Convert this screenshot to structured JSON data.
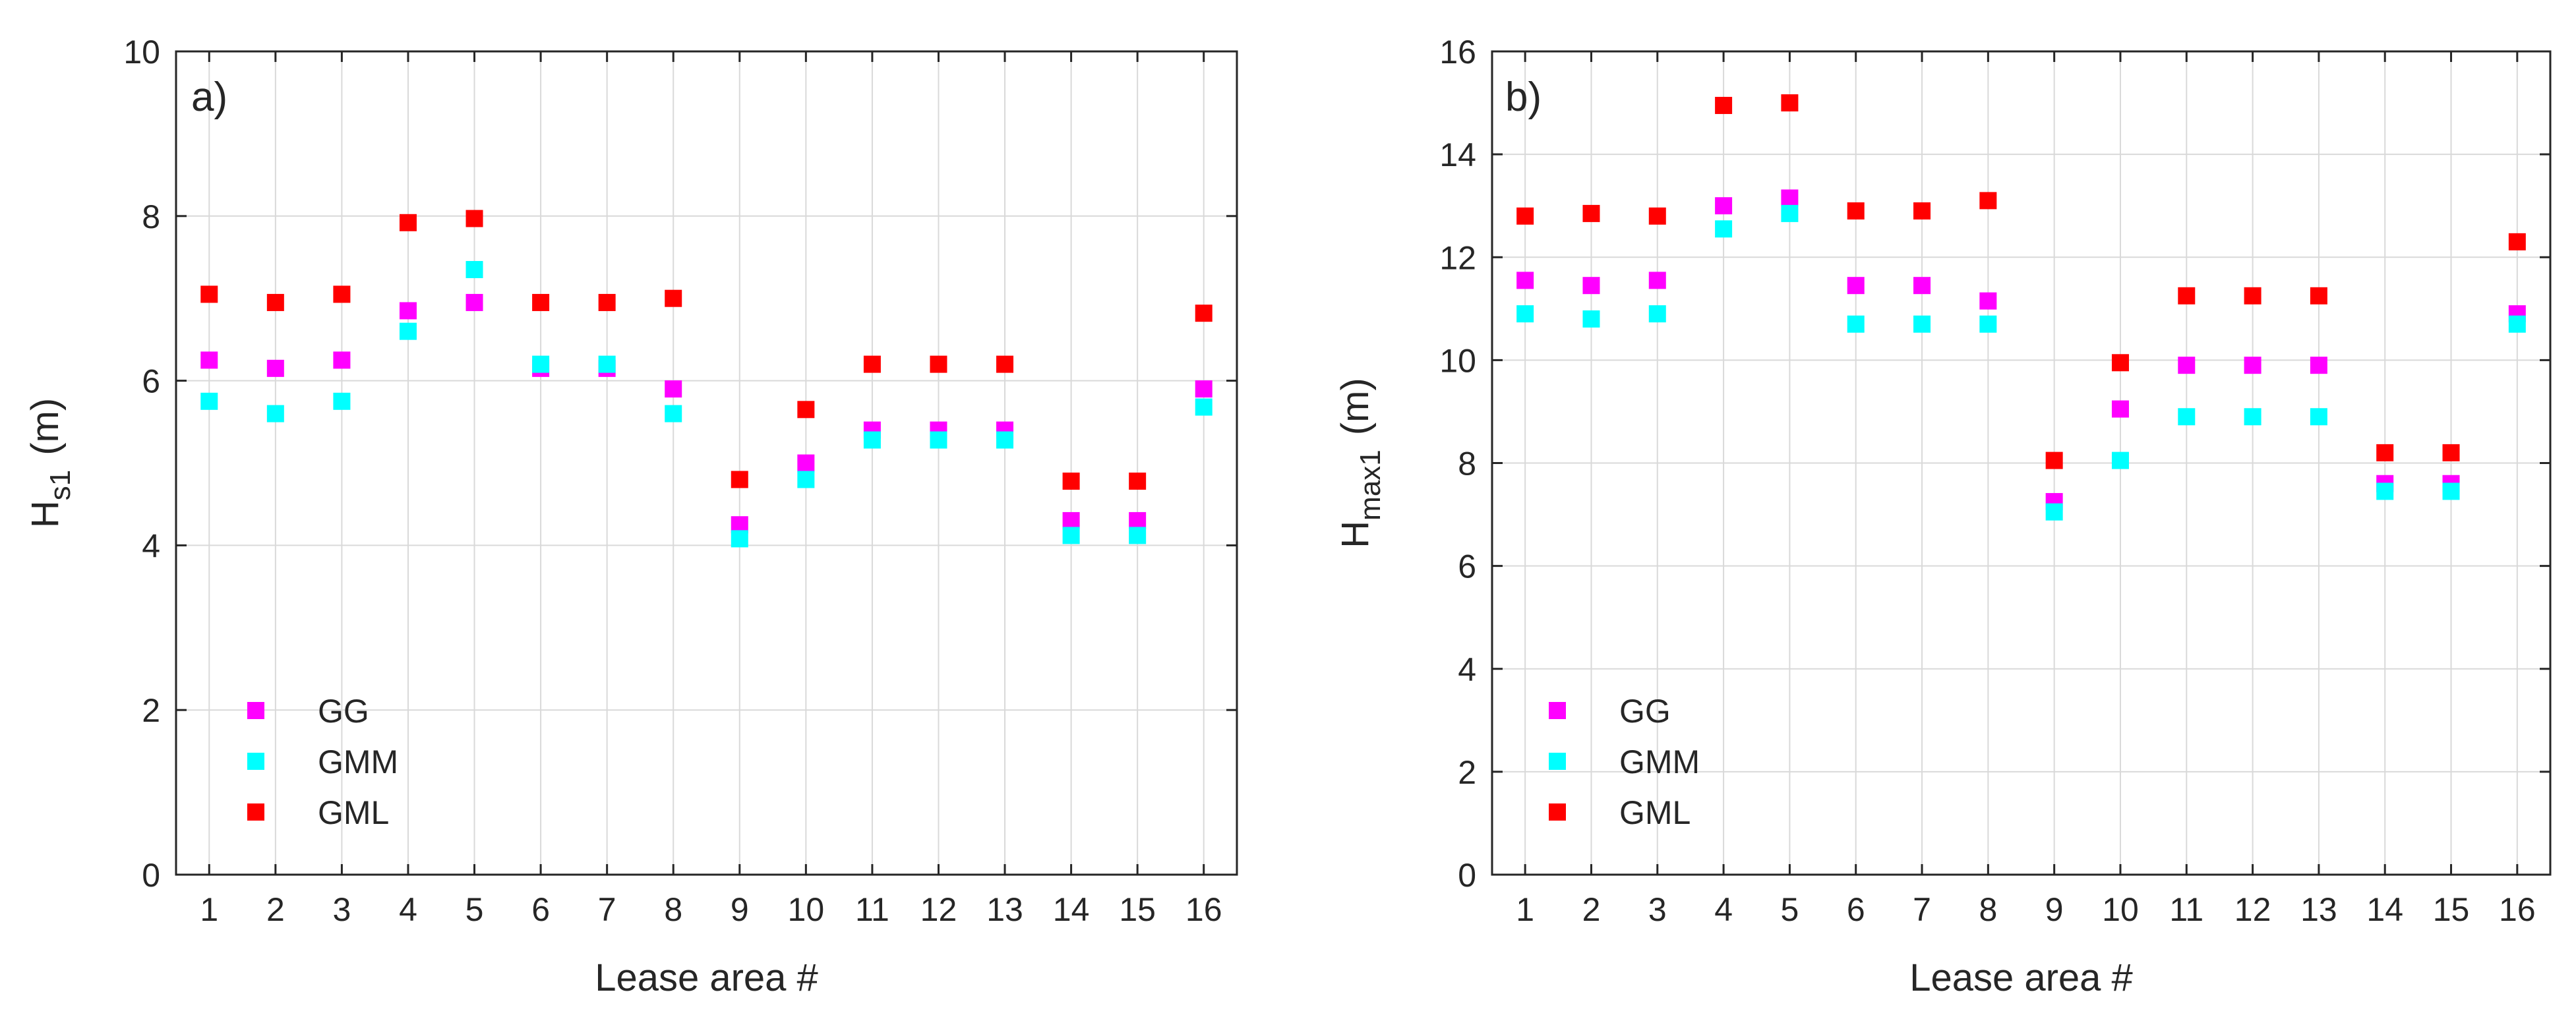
{
  "chart_data": [
    {
      "type": "scatter",
      "panel_label": "a)",
      "xlabel": "Lease area #",
      "ylabel": {
        "main": "H",
        "sub": "s1",
        "unit": "(m)"
      },
      "xlim": [
        0.5,
        16.5
      ],
      "ylim": [
        0,
        10
      ],
      "x_ticks": [
        "1",
        "2",
        "3",
        "4",
        "5",
        "6",
        "7",
        "8",
        "9",
        "10",
        "11",
        "12",
        "13",
        "14",
        "15",
        "16"
      ],
      "y_ticks": [
        "0",
        "2",
        "4",
        "6",
        "8",
        "10"
      ],
      "grid": true,
      "legend_position": "bottom-left",
      "x": [
        1,
        2,
        3,
        4,
        5,
        6,
        7,
        8,
        9,
        10,
        11,
        12,
        13,
        14,
        15,
        16
      ],
      "series": [
        {
          "name": "GG",
          "color": "#ff00ff",
          "values": [
            6.25,
            6.15,
            6.25,
            6.85,
            6.95,
            6.15,
            6.15,
            5.9,
            4.25,
            5.0,
            5.4,
            5.4,
            5.4,
            4.3,
            4.3,
            5.9
          ]
        },
        {
          "name": "GMM",
          "color": "#00ffff",
          "values": [
            5.75,
            5.6,
            5.75,
            6.6,
            7.35,
            6.2,
            6.2,
            5.6,
            4.08,
            4.8,
            5.28,
            5.28,
            5.28,
            4.12,
            4.12,
            5.68
          ]
        },
        {
          "name": "GML",
          "color": "#ff0000",
          "values": [
            7.05,
            6.95,
            7.05,
            7.92,
            7.97,
            6.95,
            6.95,
            7.0,
            4.8,
            5.65,
            6.2,
            6.2,
            6.2,
            4.78,
            4.78,
            6.82
          ]
        }
      ]
    },
    {
      "type": "scatter",
      "panel_label": "b)",
      "xlabel": "Lease area #",
      "ylabel": {
        "main": "H",
        "sub": "max1",
        "unit": "(m)"
      },
      "xlim": [
        0.5,
        16.5
      ],
      "ylim": [
        0,
        16
      ],
      "x_ticks": [
        "1",
        "2",
        "3",
        "4",
        "5",
        "6",
        "7",
        "8",
        "9",
        "10",
        "11",
        "12",
        "13",
        "14",
        "15",
        "16"
      ],
      "y_ticks": [
        "0",
        "2",
        "4",
        "6",
        "8",
        "10",
        "12",
        "14",
        "16"
      ],
      "grid": true,
      "legend_position": "bottom-left",
      "x": [
        1,
        2,
        3,
        4,
        5,
        6,
        7,
        8,
        9,
        10,
        11,
        12,
        13,
        14,
        15,
        16
      ],
      "series": [
        {
          "name": "GG",
          "color": "#ff00ff",
          "values": [
            11.55,
            11.45,
            11.55,
            13.0,
            13.15,
            11.45,
            11.45,
            11.15,
            7.25,
            9.05,
            9.9,
            9.9,
            9.9,
            7.6,
            7.6,
            10.9
          ]
        },
        {
          "name": "GMM",
          "color": "#00ffff",
          "values": [
            10.9,
            10.8,
            10.9,
            12.55,
            12.85,
            10.7,
            10.7,
            10.7,
            7.05,
            8.05,
            8.9,
            8.9,
            8.9,
            7.45,
            7.45,
            10.7
          ]
        },
        {
          "name": "GML",
          "color": "#ff0000",
          "values": [
            12.8,
            12.85,
            12.8,
            14.95,
            15.0,
            12.9,
            12.9,
            13.1,
            8.05,
            9.95,
            11.25,
            11.25,
            11.25,
            8.2,
            8.2,
            12.3
          ]
        }
      ]
    }
  ]
}
